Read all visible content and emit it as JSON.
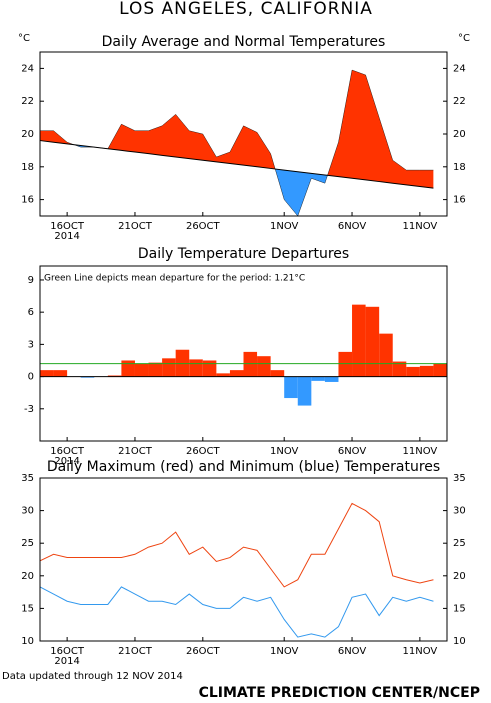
{
  "title": "LOS ANGELES, CALIFORNIA",
  "footnote": "Data updated through 12 NOV 2014",
  "credit": "CLIMATE PREDICTION CENTER/NCEP",
  "chart_data": [
    {
      "type": "area",
      "title": "Daily Average and Normal Temperatures",
      "y_unit": "°C",
      "y2_unit": "°C",
      "categories": [
        null,
        null,
        "16OCT",
        null,
        null,
        null,
        null,
        "21OCT",
        null,
        null,
        null,
        null,
        "26OCT",
        null,
        null,
        null,
        null,
        null,
        "1NOV",
        null,
        null,
        null,
        null,
        "6NOV",
        null,
        null,
        null,
        null,
        "11NOV",
        null
      ],
      "year_label": "2014",
      "series": [
        {
          "color": "#ff3300",
          "negative_color": "#3399ff",
          "values": [
            20.2,
            20.2,
            19.5,
            19.2,
            19.2,
            19.1,
            20.6,
            20.2,
            20.2,
            20.5,
            21.2,
            20.2,
            20.0,
            18.6,
            18.9,
            20.5,
            20.1,
            18.8,
            16.0,
            15.0,
            17.3,
            17.0,
            19.5,
            23.9,
            23.6,
            21.0,
            18.4,
            17.8,
            17.8,
            17.8
          ]
        },
        {
          "color": "#000000",
          "values": [
            19.6,
            19.5,
            19.4,
            19.3,
            19.2,
            19.1,
            19.0,
            18.9,
            18.8,
            18.7,
            18.6,
            18.5,
            18.4,
            18.3,
            18.2,
            18.1,
            18.0,
            17.9,
            17.8,
            17.7,
            17.6,
            17.5,
            17.4,
            17.3,
            17.2,
            17.1,
            17.0,
            16.9,
            16.8,
            16.7
          ]
        }
      ],
      "ylim": [
        15,
        25
      ],
      "yticks": [
        16,
        18,
        20,
        22,
        24
      ],
      "y2lim": [
        15,
        25
      ],
      "y2ticks": [
        16,
        18,
        20,
        22,
        24
      ]
    },
    {
      "type": "bar",
      "title": "Daily Temperature Departures",
      "annotation": "Green Line depicts mean departure for the period: 1.21°C",
      "categories": [
        null,
        null,
        "16OCT",
        null,
        null,
        null,
        null,
        "21OCT",
        null,
        null,
        null,
        null,
        "26OCT",
        null,
        null,
        null,
        null,
        null,
        "1NOV",
        null,
        null,
        null,
        null,
        "6NOV",
        null,
        null,
        null,
        null,
        "11NOV",
        null
      ],
      "year_label": "2014",
      "values": [
        0.6,
        0.6,
        0,
        -0.1,
        0,
        0.1,
        1.5,
        1.2,
        1.3,
        1.7,
        2.5,
        1.6,
        1.5,
        0.3,
        0.6,
        2.3,
        1.9,
        0.6,
        -2.0,
        -2.7,
        -0.4,
        -0.5,
        2.3,
        6.7,
        6.5,
        4.0,
        1.4,
        0.9,
        1.0,
        1.2
      ],
      "color": "#ff3300",
      "negative_color": "#3399ff",
      "mean_value": 1.21,
      "mean_color": "#22aa22",
      "ylim": [
        -6,
        10.3
      ],
      "yticks": [
        -3,
        0,
        3,
        6,
        9
      ]
    },
    {
      "type": "line",
      "title": "Daily Maximum (red) and Minimum (blue) Temperatures",
      "categories": [
        null,
        null,
        "16OCT",
        null,
        null,
        null,
        null,
        "21OCT",
        null,
        null,
        null,
        null,
        "26OCT",
        null,
        null,
        null,
        null,
        null,
        "1NOV",
        null,
        null,
        null,
        null,
        "6NOV",
        null,
        null,
        null,
        null,
        "11NOV",
        null
      ],
      "year_label": "2014",
      "series": [
        {
          "color": "#ee4411",
          "values": [
            22.3,
            23.3,
            22.8,
            22.8,
            22.8,
            22.8,
            22.8,
            23.3,
            24.4,
            25.0,
            26.7,
            23.3,
            24.4,
            22.2,
            22.8,
            24.4,
            23.9,
            21.1,
            18.3,
            19.4,
            23.3,
            23.3,
            27.2,
            31.1,
            30.0,
            28.3,
            20.0,
            19.4,
            18.9,
            19.4
          ]
        },
        {
          "color": "#3399ee",
          "values": [
            18.3,
            17.2,
            16.1,
            15.6,
            15.6,
            15.6,
            18.3,
            17.2,
            16.1,
            16.1,
            15.6,
            17.2,
            15.6,
            15.0,
            15.0,
            16.7,
            16.1,
            16.7,
            13.3,
            10.6,
            11.1,
            10.6,
            12.2,
            16.7,
            17.2,
            13.9,
            16.7,
            16.1,
            16.7,
            16.1
          ]
        }
      ],
      "ylim": [
        10,
        35
      ],
      "yticks": [
        10,
        15,
        20,
        25,
        30,
        35
      ],
      "y2lim": [
        10,
        35
      ],
      "y2ticks": [
        10,
        15,
        20,
        25,
        30,
        35
      ]
    }
  ]
}
